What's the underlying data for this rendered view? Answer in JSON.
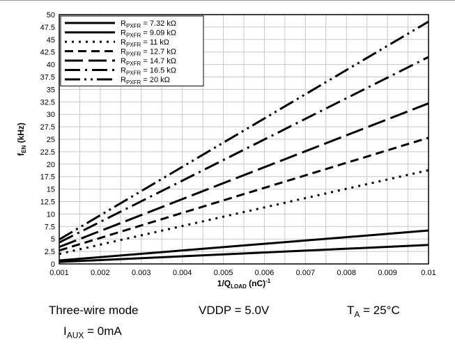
{
  "chart_data": {
    "type": "line",
    "title": "",
    "xlabel": {
      "main": "1/Q",
      "sub": "LOAD",
      "rest": " (nC)",
      "sup": "-1"
    },
    "ylabel": {
      "main": "f",
      "sub": "EN",
      "rest": " (kHz)"
    },
    "xlim": [
      0.001,
      0.01
    ],
    "ylim": [
      0,
      50
    ],
    "xticks": [
      "0.001",
      "0.002",
      "0.003",
      "0.004",
      "0.005",
      "0.006",
      "0.007",
      "0.008",
      "0.009",
      "0.01"
    ],
    "yticks": [
      "0",
      "2.5",
      "5",
      "7.5",
      "10",
      "12.5",
      "15",
      "17.5",
      "20",
      "22.5",
      "25",
      "27.5",
      "30",
      "32.5",
      "35",
      "37.5",
      "40",
      "42.5",
      "45",
      "47.5",
      "50"
    ],
    "grid": true,
    "legend_position": "top-left",
    "series": [
      {
        "name": "R",
        "sub": "PXFR",
        "value": " = 7.32 kΩ",
        "dash": "solid",
        "x": [
          0.001,
          0.01
        ],
        "y": [
          0.4,
          3.8
        ]
      },
      {
        "name": "R",
        "sub": "PXFR",
        "value": " = 9.09 kΩ",
        "dash": "solid",
        "x": [
          0.001,
          0.01
        ],
        "y": [
          0.7,
          6.7
        ]
      },
      {
        "name": "R",
        "sub": "PXFR",
        "value": " = 11 kΩ",
        "dash": "dot",
        "x": [
          0.001,
          0.01
        ],
        "y": [
          2.0,
          18.8
        ]
      },
      {
        "name": "R",
        "sub": "PXFR",
        "value": " = 12.7 kΩ",
        "dash": "short",
        "x": [
          0.001,
          0.01
        ],
        "y": [
          2.7,
          25.3
        ]
      },
      {
        "name": "R",
        "sub": "PXFR",
        "value": " = 14.7 kΩ",
        "dash": "long",
        "x": [
          0.001,
          0.01
        ],
        "y": [
          3.4,
          32.2
        ]
      },
      {
        "name": "R",
        "sub": "PXFR",
        "value": " = 16.5 kΩ",
        "dash": "dashdot",
        "x": [
          0.001,
          0.01
        ],
        "y": [
          4.3,
          41.5
        ]
      },
      {
        "name": "R",
        "sub": "PXFR",
        "value": " = 20 kΩ",
        "dash": "dashdotdot",
        "x": [
          0.001,
          0.01
        ],
        "y": [
          4.9,
          48.6
        ]
      }
    ]
  },
  "conditions": {
    "mode": "Three-wire mode",
    "vddp": "VDDP = 5.0V",
    "ta_main": "T",
    "ta_sub": "A",
    "ta_rest": " = 25°C",
    "iaux_main": "I",
    "iaux_sub": "AUX",
    "iaux_rest": " = 0mA"
  }
}
